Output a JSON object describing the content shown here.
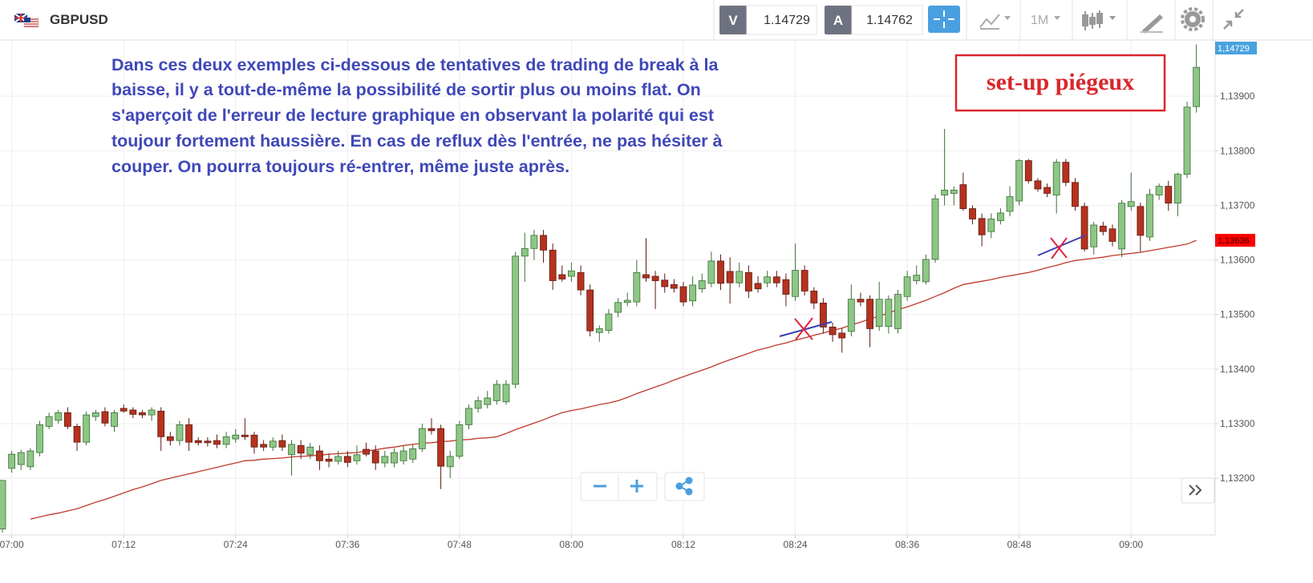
{
  "header": {
    "symbol": "GBPUSD",
    "bid_label": "V",
    "bid": "1.14729",
    "ask_label": "A",
    "ask": "1.14762",
    "timeframe": "1M"
  },
  "chart_data": {
    "type": "candlestick",
    "annotation": [
      "Dans ces deux exemples ci-dessous de tentatives de trading de break à la",
      "baisse, il y a tout-de-même la possibilité de sortir plus ou moins flat. On",
      "s'aperçoit de l'erreur de lecture graphique en observant la polarité qui est",
      "toujour fortement haussière. En cas de reflux dès l'entrée, ne pas hésiter à",
      "couper. On pourra toujours ré-entrer, même juste après."
    ],
    "callout": "set-up piégeux",
    "up_color": "#8dc785",
    "down_color": "#b5321f",
    "ma_color": "#c0392b",
    "grid": true,
    "ylim": [
      1.13096,
      1.14003
    ],
    "yticks": [
      {
        "value": 1.132,
        "label": "1,13200"
      },
      {
        "value": 1.133,
        "label": "1,13300"
      },
      {
        "value": 1.134,
        "label": "1,13400"
      },
      {
        "value": 1.135,
        "label": "1,13500"
      },
      {
        "value": 1.136,
        "label": "1,13600"
      },
      {
        "value": 1.137,
        "label": "1,13700"
      },
      {
        "value": 1.138,
        "label": "1,13800"
      },
      {
        "value": 1.139,
        "label": "1,13900"
      }
    ],
    "current_price": {
      "value": 1.14729,
      "label": "1,14729"
    },
    "ma_last": {
      "value": 1.13636,
      "label": "1,13636"
    },
    "categories": [
      null,
      "07:00",
      null,
      null,
      null,
      null,
      null,
      null,
      null,
      null,
      null,
      null,
      null,
      "07:12",
      null,
      null,
      null,
      null,
      null,
      null,
      null,
      null,
      null,
      null,
      null,
      "07:24",
      null,
      null,
      null,
      null,
      null,
      null,
      null,
      null,
      null,
      null,
      null,
      "07:36",
      null,
      null,
      null,
      null,
      null,
      null,
      null,
      null,
      null,
      null,
      null,
      "07:48",
      null,
      null,
      null,
      null,
      null,
      null,
      null,
      null,
      null,
      null,
      null,
      "08:00",
      null,
      null,
      null,
      null,
      null,
      null,
      null,
      null,
      null,
      null,
      null,
      "08:12",
      null,
      null,
      null,
      null,
      null,
      null,
      null,
      null,
      null,
      null,
      null,
      "08:24",
      null,
      null,
      null,
      null,
      null,
      null,
      null,
      null,
      null,
      null,
      null,
      "08:36",
      null,
      null,
      null,
      null,
      null,
      null,
      null,
      null,
      null,
      null,
      null,
      "08:48",
      null,
      null,
      null,
      null,
      null,
      null,
      null,
      null,
      null,
      null,
      null,
      "09:00",
      null,
      null,
      null,
      null,
      null,
      null,
      null
    ],
    "ohlc": [
      [
        1.13107,
        1.13196,
        1.131,
        1.13196
      ],
      [
        1.13218,
        1.1325,
        1.1321,
        1.13244
      ],
      [
        1.13225,
        1.13252,
        1.13215,
        1.13247
      ],
      [
        1.13221,
        1.13255,
        1.13215,
        1.1325
      ],
      [
        1.13247,
        1.13305,
        1.1324,
        1.13298
      ],
      [
        1.13295,
        1.1332,
        1.1329,
        1.13313
      ],
      [
        1.13306,
        1.13325,
        1.133,
        1.1332
      ],
      [
        1.1332,
        1.1333,
        1.1329,
        1.13295
      ],
      [
        1.13295,
        1.133,
        1.1325,
        1.13266
      ],
      [
        1.13266,
        1.13322,
        1.1326,
        1.13316
      ],
      [
        1.13313,
        1.13325,
        1.13305,
        1.1332
      ],
      [
        1.13322,
        1.1333,
        1.13295,
        1.13301
      ],
      [
        1.13295,
        1.13325,
        1.13285,
        1.1332
      ],
      [
        1.13328,
        1.13335,
        1.1332,
        1.13323
      ],
      [
        1.13325,
        1.1333,
        1.1331,
        1.13317
      ],
      [
        1.1332,
        1.13325,
        1.1331,
        1.13316
      ],
      [
        1.13316,
        1.1333,
        1.13305,
        1.13325
      ],
      [
        1.13323,
        1.1333,
        1.1325,
        1.13276
      ],
      [
        1.13276,
        1.13285,
        1.1326,
        1.13269
      ],
      [
        1.13269,
        1.13305,
        1.1326,
        1.13298
      ],
      [
        1.13298,
        1.1331,
        1.1325,
        1.13266
      ],
      [
        1.13269,
        1.13275,
        1.1326,
        1.13265
      ],
      [
        1.13268,
        1.13275,
        1.13258,
        1.13265
      ],
      [
        1.13269,
        1.1328,
        1.13255,
        1.13262
      ],
      [
        1.13262,
        1.13285,
        1.13255,
        1.13276
      ],
      [
        1.13272,
        1.1329,
        1.13265,
        1.13279
      ],
      [
        1.13279,
        1.1331,
        1.1327,
        1.13276
      ],
      [
        1.13279,
        1.13285,
        1.13245,
        1.13257
      ],
      [
        1.13262,
        1.1327,
        1.1325,
        1.13257
      ],
      [
        1.13257,
        1.13275,
        1.1325,
        1.13268
      ],
      [
        1.13269,
        1.1328,
        1.1325,
        1.13257
      ],
      [
        1.13243,
        1.1327,
        1.13205,
        1.13262
      ],
      [
        1.1326,
        1.1327,
        1.13235,
        1.13246
      ],
      [
        1.13243,
        1.13265,
        1.13235,
        1.13257
      ],
      [
        1.1325,
        1.1326,
        1.13215,
        1.13232
      ],
      [
        1.13235,
        1.13245,
        1.1322,
        1.13231
      ],
      [
        1.13231,
        1.1325,
        1.13225,
        1.1324
      ],
      [
        1.1324,
        1.1325,
        1.1322,
        1.13229
      ],
      [
        1.13232,
        1.1326,
        1.13225,
        1.13243
      ],
      [
        1.13253,
        1.13265,
        1.1324,
        1.13244
      ],
      [
        1.1325,
        1.1326,
        1.13215,
        1.13228
      ],
      [
        1.13228,
        1.1325,
        1.1322,
        1.1324
      ],
      [
        1.13228,
        1.13255,
        1.1322,
        1.13247
      ],
      [
        1.13232,
        1.1326,
        1.13225,
        1.1325
      ],
      [
        1.13235,
        1.13262,
        1.13228,
        1.13254
      ],
      [
        1.13254,
        1.133,
        1.13248,
        1.13291
      ],
      [
        1.13291,
        1.1331,
        1.1328,
        1.13287
      ],
      [
        1.13291,
        1.13298,
        1.1318,
        1.13222
      ],
      [
        1.13221,
        1.1325,
        1.132,
        1.1324
      ],
      [
        1.1324,
        1.13305,
        1.13235,
        1.13298
      ],
      [
        1.13298,
        1.13335,
        1.1329,
        1.13328
      ],
      [
        1.13328,
        1.1335,
        1.1332,
        1.13342
      ],
      [
        1.13335,
        1.1336,
        1.13328,
        1.13347
      ],
      [
        1.13342,
        1.1338,
        1.13335,
        1.13372
      ],
      [
        1.1334,
        1.1338,
        1.13335,
        1.13372
      ],
      [
        1.13372,
        1.13615,
        1.13365,
        1.13607
      ],
      [
        1.13607,
        1.1365,
        1.1356,
        1.13621
      ],
      [
        1.13621,
        1.13655,
        1.136,
        1.13645
      ],
      [
        1.13645,
        1.13655,
        1.13595,
        1.13618
      ],
      [
        1.13618,
        1.1363,
        1.13545,
        1.13562
      ],
      [
        1.13573,
        1.1359,
        1.1356,
        1.13565
      ],
      [
        1.1357,
        1.13595,
        1.1356,
        1.1358
      ],
      [
        1.13577,
        1.1359,
        1.13535,
        1.13545
      ],
      [
        1.13545,
        1.13555,
        1.1346,
        1.1347
      ],
      [
        1.13467,
        1.1348,
        1.1345,
        1.13474
      ],
      [
        1.13471,
        1.1351,
        1.13465,
        1.13501
      ],
      [
        1.13504,
        1.1353,
        1.13495,
        1.13522
      ],
      [
        1.13522,
        1.1354,
        1.13515,
        1.13526
      ],
      [
        1.13523,
        1.136,
        1.13515,
        1.13577
      ],
      [
        1.13573,
        1.1364,
        1.1356,
        1.13567
      ],
      [
        1.1357,
        1.1358,
        1.1351,
        1.13562
      ],
      [
        1.13563,
        1.13575,
        1.1354,
        1.13551
      ],
      [
        1.13555,
        1.13565,
        1.1354,
        1.13548
      ],
      [
        1.13551,
        1.1356,
        1.13515,
        1.13523
      ],
      [
        1.13525,
        1.1357,
        1.13515,
        1.13554
      ],
      [
        1.13547,
        1.13575,
        1.1354,
        1.13562
      ],
      [
        1.13557,
        1.13615,
        1.1355,
        1.13598
      ],
      [
        1.13598,
        1.1361,
        1.13545,
        1.13557
      ],
      [
        1.13579,
        1.13605,
        1.1352,
        1.13558
      ],
      [
        1.13558,
        1.13595,
        1.1355,
        1.13579
      ],
      [
        1.13577,
        1.1359,
        1.1353,
        1.13543
      ],
      [
        1.13557,
        1.1357,
        1.1354,
        1.13547
      ],
      [
        1.13558,
        1.1358,
        1.1355,
        1.13569
      ],
      [
        1.13569,
        1.1358,
        1.1355,
        1.13558
      ],
      [
        1.13564,
        1.13575,
        1.13515,
        1.13537
      ],
      [
        1.13533,
        1.1363,
        1.13525,
        1.13581
      ],
      [
        1.13581,
        1.1359,
        1.13535,
        1.13543
      ],
      [
        1.13543,
        1.1355,
        1.1351,
        1.13521
      ],
      [
        1.13521,
        1.1353,
        1.13465,
        1.13477
      ],
      [
        1.13477,
        1.13485,
        1.1345,
        1.13463
      ],
      [
        1.13466,
        1.13475,
        1.1343,
        1.13457
      ],
      [
        1.13469,
        1.13555,
        1.1346,
        1.13528
      ],
      [
        1.13528,
        1.1354,
        1.13515,
        1.13523
      ],
      [
        1.13528,
        1.13535,
        1.1344,
        1.13474
      ],
      [
        1.13478,
        1.1356,
        1.1347,
        1.13528
      ],
      [
        1.13478,
        1.13535,
        1.13465,
        1.13528
      ],
      [
        1.13474,
        1.13545,
        1.13465,
        1.13537
      ],
      [
        1.13533,
        1.1358,
        1.13525,
        1.13569
      ],
      [
        1.13562,
        1.1359,
        1.13555,
        1.13572
      ],
      [
        1.1356,
        1.1361,
        1.13555,
        1.13601
      ],
      [
        1.13601,
        1.1372,
        1.13595,
        1.13712
      ],
      [
        1.13719,
        1.1384,
        1.137,
        1.13728
      ],
      [
        1.13722,
        1.13735,
        1.137,
        1.13728
      ],
      [
        1.13738,
        1.1376,
        1.1369,
        1.13694
      ],
      [
        1.13694,
        1.137,
        1.13665,
        1.13675
      ],
      [
        1.13676,
        1.13685,
        1.13625,
        1.13646
      ],
      [
        1.13652,
        1.13685,
        1.1364,
        1.13675
      ],
      [
        1.13672,
        1.13695,
        1.13665,
        1.13686
      ],
      [
        1.13689,
        1.13735,
        1.1368,
        1.13716
      ],
      [
        1.13708,
        1.13785,
        1.137,
        1.13782
      ],
      [
        1.13782,
        1.13785,
        1.1374,
        1.13745
      ],
      [
        1.13745,
        1.1375,
        1.13725,
        1.1373
      ],
      [
        1.13733,
        1.1374,
        1.13715,
        1.13722
      ],
      [
        1.13719,
        1.13785,
        1.13685,
        1.13779
      ],
      [
        1.13779,
        1.13785,
        1.13735,
        1.13742
      ],
      [
        1.13742,
        1.1375,
        1.1369,
        1.13698
      ],
      [
        1.13698,
        1.13705,
        1.13615,
        1.1362
      ],
      [
        1.13624,
        1.1367,
        1.1361,
        1.13664
      ],
      [
        1.13662,
        1.1367,
        1.13645,
        1.13652
      ],
      [
        1.13657,
        1.13665,
        1.13625,
        1.13634
      ],
      [
        1.1362,
        1.1371,
        1.13605,
        1.13704
      ],
      [
        1.13698,
        1.1376,
        1.1369,
        1.13707
      ],
      [
        1.13698,
        1.13705,
        1.13615,
        1.13645
      ],
      [
        1.13642,
        1.1373,
        1.13635,
        1.1372
      ],
      [
        1.13719,
        1.1374,
        1.1371,
        1.13735
      ],
      [
        1.13735,
        1.13745,
        1.1369,
        1.13704
      ],
      [
        1.13704,
        1.1376,
        1.1368,
        1.13757
      ],
      [
        1.13757,
        1.1389,
        1.1375,
        1.1388
      ],
      [
        1.13881,
        1.13995,
        1.1387,
        1.13953
      ]
    ],
    "ma": [
      null,
      null,
      null,
      1.13125,
      1.13129,
      1.13133,
      1.13136,
      1.1314,
      1.13144,
      1.1315,
      1.13156,
      1.13161,
      1.13167,
      1.13173,
      1.13179,
      1.13184,
      1.1319,
      1.13196,
      1.132,
      1.13204,
      1.13208,
      1.13212,
      1.13216,
      1.1322,
      1.13224,
      1.13228,
      1.13232,
      1.13233,
      1.13235,
      1.13236,
      1.13237,
      1.13239,
      1.1324,
      1.13241,
      1.13242,
      1.13244,
      1.13245,
      1.13246,
      1.13247,
      1.1325,
      1.13252,
      1.13255,
      1.13257,
      1.1326,
      1.13262,
      1.13264,
      1.13265,
      1.13267,
      1.13268,
      1.1327,
      1.13271,
      1.13273,
      1.13274,
      1.13276,
      1.13282,
      1.13289,
      1.13295,
      1.13301,
      1.13307,
      1.13314,
      1.1332,
      1.13324,
      1.13327,
      1.13331,
      1.13335,
      1.13338,
      1.13342,
      1.13348,
      1.13355,
      1.13361,
      1.13367,
      1.13373,
      1.1338,
      1.13386,
      1.13392,
      1.13398,
      1.13404,
      1.13411,
      1.13417,
      1.13423,
      1.13429,
      1.13435,
      1.13439,
      1.13444,
      1.13448,
      1.13453,
      1.13457,
      1.13462,
      1.13466,
      1.13471,
      1.13475,
      1.13481,
      1.13486,
      1.13492,
      1.13497,
      1.13503,
      1.13509,
      1.13514,
      1.1352,
      1.13526,
      1.13533,
      1.1354,
      1.13548,
      1.13555,
      1.13558,
      1.13561,
      1.13564,
      1.13568,
      1.13571,
      1.13574,
      1.13577,
      1.13581,
      1.13586,
      1.1359,
      1.13595,
      1.13599,
      1.13601,
      1.13603,
      1.13605,
      1.13608,
      1.1361,
      1.13612,
      1.13614,
      1.13617,
      1.1362,
      1.13623,
      1.13626,
      1.13629,
      1.13636
    ]
  }
}
